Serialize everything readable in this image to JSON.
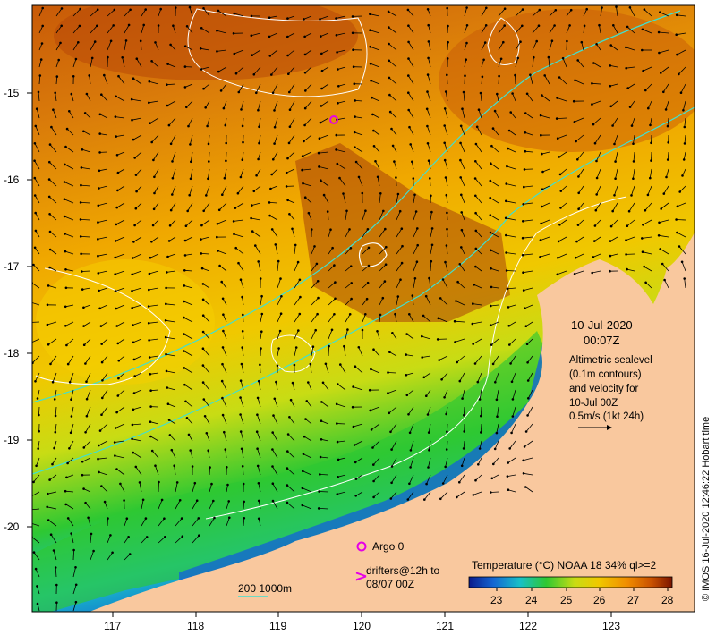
{
  "map": {
    "date": "10-Jul-2020",
    "time": "00:07Z",
    "info_lines": [
      "Altimetric sealevel",
      "(0.1m contours)",
      "and velocity for",
      "10-Jul 00Z",
      "0.5m/s (1kt 24h)"
    ],
    "colorbar": {
      "title": "Temperature (°C) NOAA 18 34% ql>=2",
      "ticks": [
        "23",
        "24",
        "25",
        "26",
        "27",
        "28"
      ],
      "colors": [
        "#0a1a8c",
        "#1466d2",
        "#18c0c8",
        "#2ec832",
        "#c8dc14",
        "#f0c800",
        "#f08c00",
        "#c85000",
        "#7a1400"
      ]
    },
    "argo_label": "Argo 0",
    "drifters_label_1": "drifters@12h to",
    "drifters_label_2": "08/07 00Z",
    "bathy_label": "200  1000m",
    "credit": "© IMOS 16-Jul-2020 12:46:22 Hobart time",
    "lat_ticks": [
      "-15",
      "-16",
      "-17",
      "-18",
      "-19",
      "-20"
    ],
    "lon_ticks": [
      "117",
      "118",
      "119",
      "120",
      "121",
      "122",
      "123"
    ],
    "colors": {
      "land": "#f9c89e",
      "argo": "#e600e6",
      "bathy200": "#40e0d0",
      "contour": "#ffffff"
    }
  }
}
